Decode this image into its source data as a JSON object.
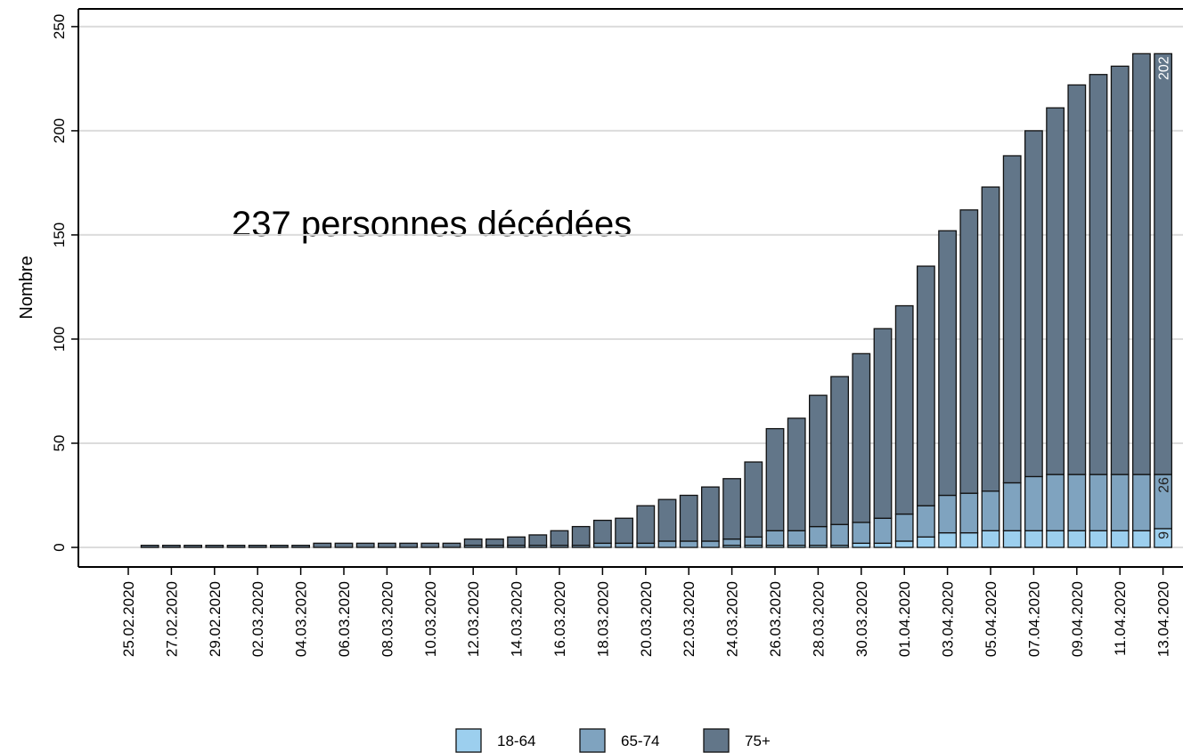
{
  "chart_data": {
    "type": "stacked_bar",
    "annotation": "237 personnes décédées",
    "y_label": "Nombre",
    "categories": [
      "25.02.2020",
      null,
      "27.02.2020",
      null,
      "29.02.2020",
      null,
      "02.03.2020",
      null,
      "04.03.2020",
      null,
      "06.03.2020",
      null,
      "08.03.2020",
      null,
      "10.03.2020",
      null,
      "12.03.2020",
      null,
      "14.03.2020",
      null,
      "16.03.2020",
      null,
      "18.03.2020",
      null,
      "20.03.2020",
      null,
      "22.03.2020",
      null,
      "24.03.2020",
      null,
      "26.03.2020",
      null,
      "28.03.2020",
      null,
      "30.03.2020",
      null,
      "01.04.2020",
      null,
      "03.04.2020",
      null,
      "05.04.2020",
      null,
      "07.04.2020",
      null,
      "09.04.2020",
      null,
      "11.04.2020",
      null,
      "13.04.2020"
    ],
    "series": [
      {
        "name": "18-64",
        "color": "#9ccfee",
        "values": [
          null,
          0,
          0,
          0,
          0,
          0,
          0,
          0,
          0,
          0,
          0,
          0,
          0,
          0,
          0,
          0,
          0,
          0,
          0,
          0,
          0,
          0,
          0,
          0,
          0,
          0,
          0,
          0,
          1,
          1,
          1,
          1,
          1,
          1,
          2,
          2,
          3,
          5,
          7,
          7,
          8,
          8,
          8,
          8,
          8,
          8,
          8,
          8,
          9
        ]
      },
      {
        "name": "65-74",
        "color": "#7fa3bf",
        "values": [
          null,
          0,
          0,
          0,
          0,
          0,
          0,
          0,
          0,
          0,
          0,
          0,
          0,
          0,
          0,
          0,
          1,
          1,
          1,
          1,
          1,
          1,
          2,
          2,
          2,
          3,
          3,
          3,
          3,
          4,
          7,
          7,
          9,
          10,
          10,
          12,
          13,
          15,
          18,
          19,
          19,
          23,
          26,
          27,
          27,
          27,
          27,
          27,
          26
        ]
      },
      {
        "name": "75+",
        "color": "#627689",
        "values": [
          null,
          1,
          1,
          1,
          1,
          1,
          1,
          1,
          1,
          2,
          2,
          2,
          2,
          2,
          2,
          2,
          3,
          3,
          4,
          5,
          7,
          9,
          11,
          12,
          18,
          20,
          22,
          26,
          29,
          36,
          49,
          54,
          63,
          71,
          81,
          91,
          100,
          115,
          127,
          136,
          146,
          157,
          166,
          176,
          187,
          192,
          196,
          202,
          202
        ]
      }
    ],
    "ylim": [
      -9.4,
      258.5
    ],
    "yticks": [
      0,
      50,
      100,
      150,
      200,
      250
    ],
    "grid": true,
    "label_last_bar": true,
    "legend": "bottom"
  }
}
